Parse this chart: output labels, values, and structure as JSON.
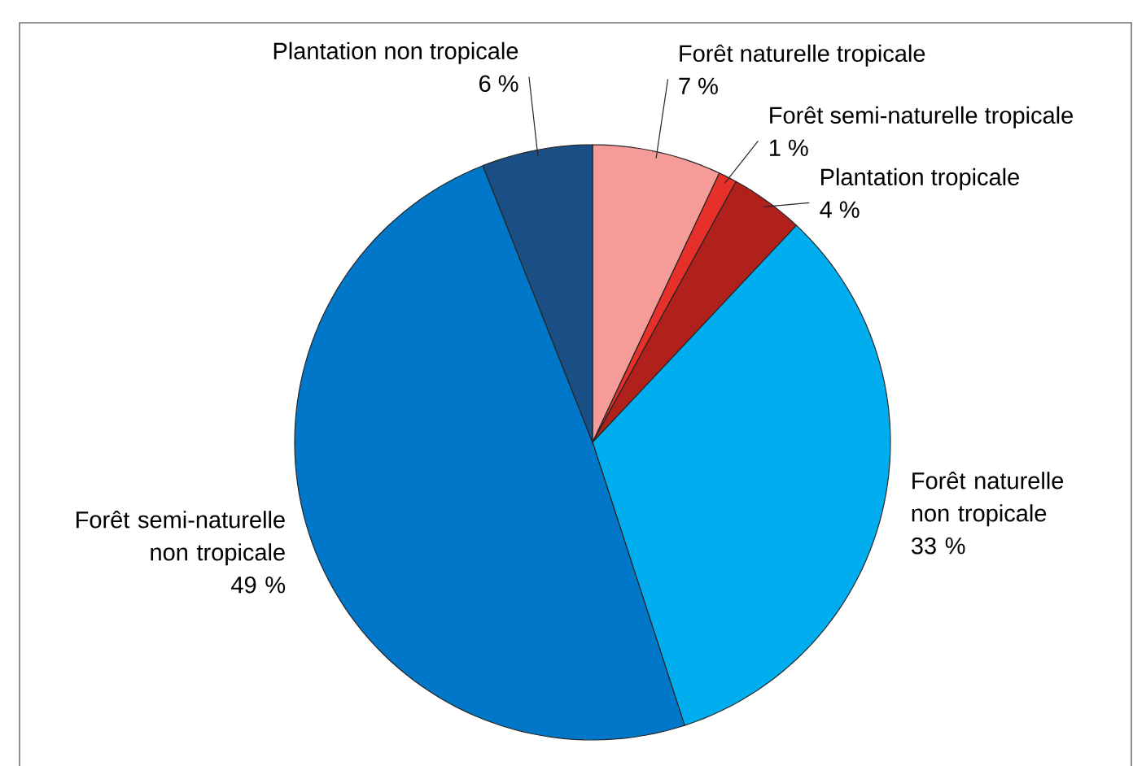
{
  "chart_data": {
    "type": "pie",
    "categories": [
      "Forêt naturelle tropicale",
      "Forêt semi-naturelle tropicale",
      "Plantation tropicale",
      "Forêt naturelle non tropicale",
      "Forêt semi-naturelle non tropicale",
      "Plantation non tropicale"
    ],
    "values": [
      7,
      1,
      4,
      33,
      49,
      6
    ],
    "value_labels": [
      "7 %",
      "1 %",
      "4 %",
      "33 %",
      "49 %",
      "6 %"
    ],
    "colors": [
      "#f59b98",
      "#e8302a",
      "#b0211c",
      "#00aeef",
      "#0077c8",
      "#1a4f85"
    ]
  }
}
